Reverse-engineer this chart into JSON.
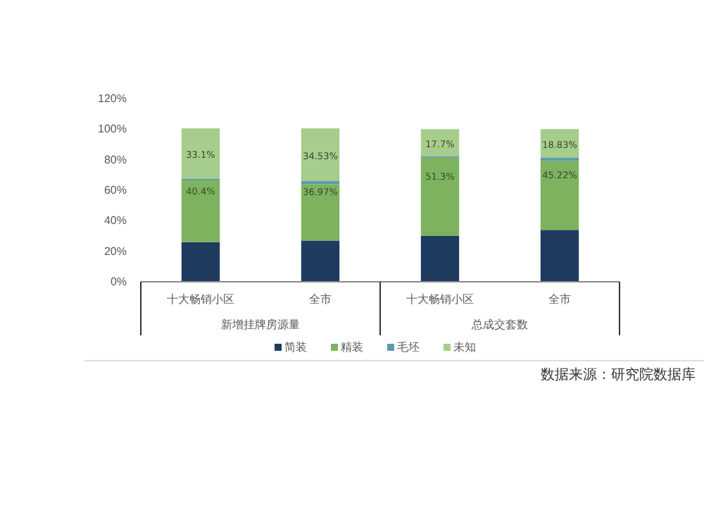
{
  "chart_data": {
    "type": "bar",
    "stacked": true,
    "categories": [
      "十大畅销小区",
      "全市",
      "十大畅销小区",
      "全市"
    ],
    "series": [
      {
        "name": "简装",
        "color": "#1f3a5f",
        "values": [
          26,
          27,
          30,
          34
        ],
        "value_labels": [
          null,
          null,
          null,
          null
        ]
      },
      {
        "name": "精装",
        "color": "#7db35e",
        "values": [
          40.4,
          36.97,
          51.3,
          45.22
        ],
        "value_labels": [
          "40.4%",
          "36.97%",
          "51.3%",
          "45.22%"
        ]
      },
      {
        "name": "毛坯",
        "color": "#5b9bab",
        "values": [
          1,
          2,
          1,
          2
        ],
        "value_labels": [
          null,
          null,
          null,
          null
        ]
      },
      {
        "name": "未知",
        "color": "#a6cd8c",
        "values": [
          33.1,
          34.53,
          17.7,
          18.83
        ],
        "value_labels": [
          "33.1%",
          "34.53%",
          "17.7%",
          "18.83%"
        ]
      }
    ],
    "ylim": [
      0,
      120
    ],
    "yticks": [
      {
        "value": 0,
        "label": "0%"
      },
      {
        "value": 20,
        "label": "20%"
      },
      {
        "value": 40,
        "label": "40%"
      },
      {
        "value": 60,
        "label": "60%"
      },
      {
        "value": 80,
        "label": "80%"
      },
      {
        "value": 100,
        "label": "100%"
      },
      {
        "value": 120,
        "label": "120%"
      }
    ],
    "annotations": [
      "新增挂牌房源量",
      "总成交套数",
      "数据来源：研究院数据库"
    ],
    "legend": "bottom"
  }
}
